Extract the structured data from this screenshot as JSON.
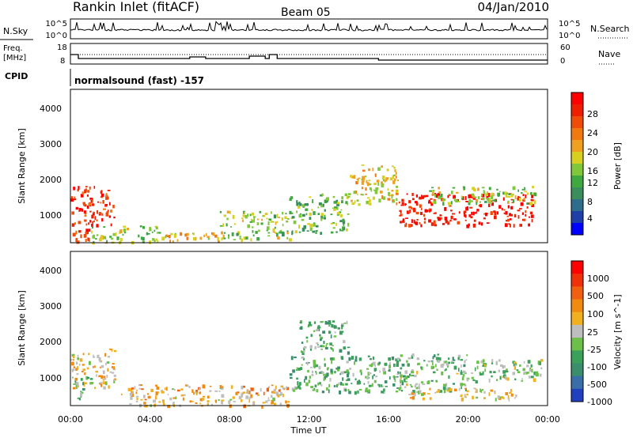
{
  "header": {
    "station": "Rankin Inlet (fitACF)",
    "beam": "Beam 05",
    "date": "04/Jan/2010"
  },
  "panels": {
    "nsky": {
      "label": "N.Sky",
      "left_ticks": [
        "10^5",
        "10^0"
      ],
      "right_label": "N.Search",
      "right_ticks": [
        "10^5",
        "10^0"
      ]
    },
    "freq": {
      "label_line1": "Freq.",
      "label_line2": "[MHz]",
      "left_ticks": [
        "18",
        "8"
      ],
      "right_label": "Nave",
      "right_ticks": [
        "60",
        "0"
      ]
    },
    "cpid": {
      "label": "CPID",
      "mode_text": "normalsound (fast) -157"
    }
  },
  "colorbars": {
    "power": {
      "label": "Power [dB]",
      "ticks": [
        "28",
        "24",
        "20",
        "16",
        "12",
        "8",
        "4"
      ],
      "colors": [
        "#0000ff",
        "#1f3fa8",
        "#2e6e8c",
        "#3a8e5c",
        "#3fa83f",
        "#7fc83a",
        "#d8d020",
        "#f0a020",
        "#f07a10",
        "#f04b08",
        "#f01e00",
        "#ff0000"
      ]
    },
    "velocity": {
      "label": "Velocity [m s^-1]",
      "ticks": [
        "1000",
        "500",
        "100",
        "25",
        "-25",
        "-100",
        "-500",
        "-1000"
      ],
      "colors": [
        "#2040c0",
        "#3a6ea8",
        "#3a8e6c",
        "#3aa05a",
        "#6cc04a",
        "#bebebe",
        "#f0b020",
        "#f08a10",
        "#f06010",
        "#f03008",
        "#ff0000"
      ]
    }
  },
  "axes": {
    "ylabel": "Slant Range [km]",
    "yticks": [
      "4000",
      "3000",
      "2000",
      "1000"
    ],
    "xticks": [
      "00:00",
      "04:00",
      "08:00",
      "12:00",
      "16:00",
      "20:00",
      "00:00"
    ],
    "xlabel": "Time UT"
  },
  "chart_data": [
    {
      "type": "heatmap",
      "title": "Power",
      "xlabel": "Time UT",
      "ylabel": "Slant Range [km]",
      "x_range_hours": [
        0,
        24
      ],
      "y_range_km": [
        200,
        4500
      ],
      "colorbar_label": "Power [dB]",
      "colorbar_range": [
        0,
        30
      ],
      "regions": [
        {
          "t": [
            0.0,
            2.2
          ],
          "r": [
            700,
            1800
          ],
          "value": 26
        },
        {
          "t": [
            0.1,
            1.0
          ],
          "r": [
            200,
            600
          ],
          "value": 25
        },
        {
          "t": [
            1.0,
            4.5
          ],
          "r": [
            200,
            700
          ],
          "value": 14
        },
        {
          "t": [
            4.5,
            7.5
          ],
          "r": [
            250,
            500
          ],
          "value": 18
        },
        {
          "t": [
            7.5,
            11.0
          ],
          "r": [
            300,
            1100
          ],
          "value": 14
        },
        {
          "t": [
            11.0,
            14.0
          ],
          "r": [
            500,
            1600
          ],
          "value": 12
        },
        {
          "t": [
            14.0,
            16.5
          ],
          "r": [
            1300,
            2400
          ],
          "value": 17
        },
        {
          "t": [
            16.5,
            23.2
          ],
          "r": [
            700,
            1600
          ],
          "value": 28
        },
        {
          "t": [
            18.0,
            23.5
          ],
          "r": [
            1300,
            1800
          ],
          "value": 14
        }
      ]
    },
    {
      "type": "heatmap",
      "title": "Velocity",
      "xlabel": "Time UT",
      "ylabel": "Slant Range [km]",
      "x_range_hours": [
        0,
        24
      ],
      "y_range_km": [
        200,
        4500
      ],
      "colorbar_label": "Velocity [m s^-1]",
      "colorbar_range": [
        -1000,
        1000
      ],
      "regions": [
        {
          "t": [
            0.0,
            2.2
          ],
          "r": [
            700,
            1800
          ],
          "value": 150
        },
        {
          "t": [
            0.1,
            1.0
          ],
          "r": [
            400,
            1000
          ],
          "value": -300
        },
        {
          "t": [
            2.5,
            11.0
          ],
          "r": [
            200,
            800
          ],
          "value": 200
        },
        {
          "t": [
            11.5,
            14.0
          ],
          "r": [
            1700,
            2600
          ],
          "value": -300
        },
        {
          "t": [
            11.0,
            16.5
          ],
          "r": [
            600,
            1600
          ],
          "value": -300
        },
        {
          "t": [
            16.5,
            20.0
          ],
          "r": [
            600,
            1700
          ],
          "value": -200
        },
        {
          "t": [
            17.0,
            22.5
          ],
          "r": [
            400,
            700
          ],
          "value": 150
        },
        {
          "t": [
            20.0,
            23.8
          ],
          "r": [
            900,
            1500
          ],
          "value": -150
        }
      ]
    }
  ]
}
